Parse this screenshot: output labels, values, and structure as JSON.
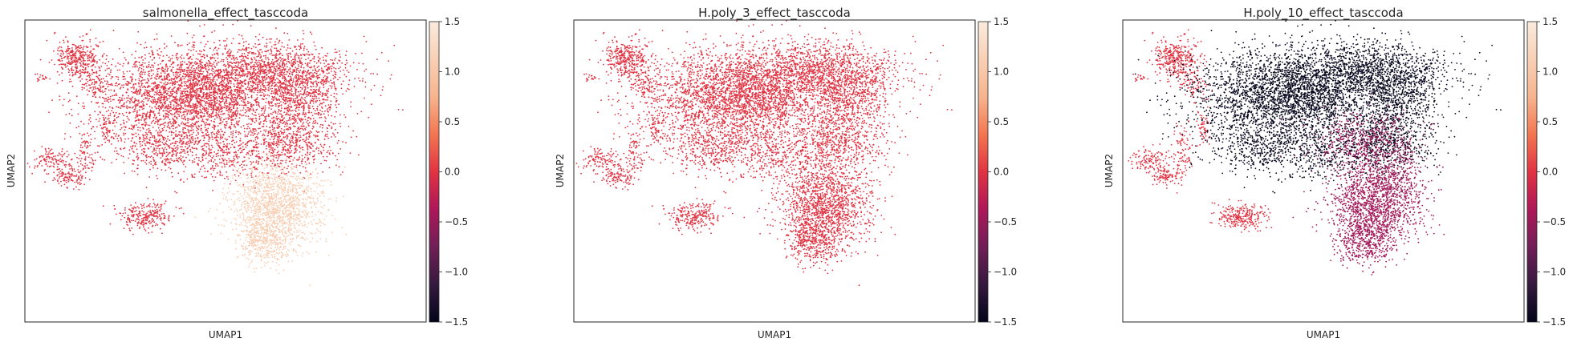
{
  "figure": {
    "panels": [
      {
        "title": "salmonella_effect_tasccoda",
        "xlabel": "UMAP1",
        "ylabel": "UMAP2"
      },
      {
        "title": "H.poly_3_effect_tasccoda",
        "xlabel": "UMAP1",
        "ylabel": "UMAP2"
      },
      {
        "title": "H.poly_10_effect_tasccoda",
        "xlabel": "UMAP1",
        "ylabel": "UMAP2"
      }
    ],
    "colorbar_ticks": [
      "1.5",
      "1.0",
      "0.5",
      "0.0",
      "−0.5",
      "−1.0",
      "−1.5"
    ]
  },
  "chart_data": [
    {
      "type": "scatter",
      "title": "salmonella_effect_tasccoda",
      "xlabel": "UMAP1",
      "ylabel": "UMAP2",
      "color_scale": {
        "name": "rocket",
        "range": [
          -1.5,
          1.5
        ],
        "ticks": [
          -1.5,
          -1.0,
          -0.5,
          0.0,
          0.5,
          1.0,
          1.5
        ]
      },
      "clusters": [
        {
          "region": "left upper island",
          "value": 0.0
        },
        {
          "region": "main upper mass",
          "value": 0.0
        },
        {
          "region": "left lower branch",
          "value": 0.0
        },
        {
          "region": "bottom small cluster",
          "value": 0.0
        },
        {
          "region": "lower right cluster",
          "value": 1.1
        }
      ]
    },
    {
      "type": "scatter",
      "title": "H.poly_3_effect_tasccoda",
      "xlabel": "UMAP1",
      "ylabel": "UMAP2",
      "color_scale": {
        "name": "rocket",
        "range": [
          -1.5,
          1.5
        ],
        "ticks": [
          -1.5,
          -1.0,
          -0.5,
          0.0,
          0.5,
          1.0,
          1.5
        ]
      },
      "clusters": [
        {
          "region": "left upper island",
          "value": 0.0
        },
        {
          "region": "main upper mass",
          "value": 0.0
        },
        {
          "region": "left lower branch",
          "value": 0.0
        },
        {
          "region": "bottom small cluster",
          "value": 0.0
        },
        {
          "region": "lower right cluster",
          "value": 0.0
        }
      ]
    },
    {
      "type": "scatter",
      "title": "H.poly_10_effect_tasccoda",
      "xlabel": "UMAP1",
      "ylabel": "UMAP2",
      "color_scale": {
        "name": "rocket",
        "range": [
          -1.5,
          1.5
        ],
        "ticks": [
          -1.5,
          -1.0,
          -0.5,
          0.0,
          0.5,
          1.0,
          1.5
        ]
      },
      "clusters": [
        {
          "region": "left upper island",
          "value": 0.0
        },
        {
          "region": "main upper mass",
          "value": -1.45
        },
        {
          "region": "main lower right mass",
          "value": -0.5
        },
        {
          "region": "left lower branch",
          "value": 0.0
        },
        {
          "region": "bottom small cluster",
          "value": 0.0
        },
        {
          "region": "lower right cluster",
          "value": -0.45
        }
      ]
    }
  ]
}
